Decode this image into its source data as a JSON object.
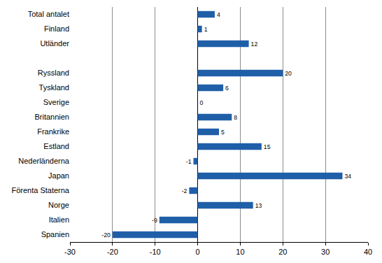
{
  "chart_data": {
    "type": "bar",
    "orientation": "horizontal",
    "categories": [
      "Total antalet",
      "Finland",
      "Utländer",
      null,
      "Ryssland",
      "Tyskland",
      "Sverige",
      "Britannien",
      "Frankrike",
      "Estland",
      "Nederländerna",
      "Japan",
      "Förenta Staterna",
      "Norge",
      "Italien",
      "Spanien"
    ],
    "values": [
      4,
      1,
      12,
      null,
      20,
      6,
      0,
      8,
      5,
      15,
      -1,
      34,
      -2,
      13,
      -9,
      -20
    ],
    "color": "#1f5fa8",
    "xlim": [
      -30,
      40
    ],
    "xticks": [
      -30,
      -20,
      -10,
      0,
      10,
      20,
      30,
      40
    ],
    "grid": true,
    "data_labels": true
  }
}
